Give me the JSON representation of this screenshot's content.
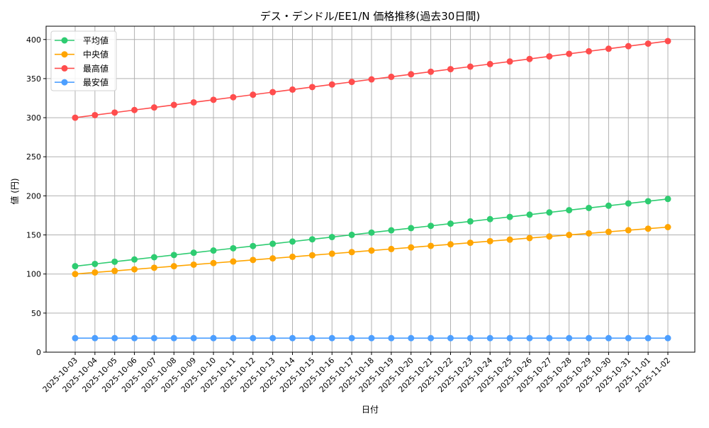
{
  "chart_data": {
    "type": "line",
    "title": "デス・デンドル/EE1/N 価格推移(過去30日間)",
    "xlabel": "日付",
    "ylabel": "値 (円)",
    "ylim": [
      0,
      417
    ],
    "yticks": [
      0,
      50,
      100,
      150,
      200,
      250,
      300,
      350,
      400
    ],
    "grid": true,
    "legend_position": "top-left",
    "categories": [
      "2025-10-03",
      "2025-10-04",
      "2025-10-05",
      "2025-10-06",
      "2025-10-07",
      "2025-10-08",
      "2025-10-09",
      "2025-10-10",
      "2025-10-11",
      "2025-10-12",
      "2025-10-13",
      "2025-10-14",
      "2025-10-15",
      "2025-10-16",
      "2025-10-17",
      "2025-10-18",
      "2025-10-19",
      "2025-10-20",
      "2025-10-21",
      "2025-10-22",
      "2025-10-23",
      "2025-10-24",
      "2025-10-25",
      "2025-10-26",
      "2025-10-27",
      "2025-10-28",
      "2025-10-29",
      "2025-10-30",
      "2025-10-31",
      "2025-11-01",
      "2025-11-02"
    ],
    "series": [
      {
        "name": "平均値",
        "color": "#2ecc71",
        "values": [
          110,
          112.87,
          115.73,
          118.6,
          121.47,
          124.33,
          127.2,
          130.07,
          132.93,
          135.8,
          138.67,
          141.53,
          144.4,
          147.27,
          150.13,
          153,
          155.87,
          158.73,
          161.6,
          164.47,
          167.33,
          170.2,
          173.07,
          175.93,
          178.8,
          181.67,
          184.53,
          187.4,
          190.27,
          193.13,
          196
        ]
      },
      {
        "name": "中央値",
        "color": "#ffa500",
        "values": [
          100,
          102,
          104,
          106,
          108,
          110,
          112,
          114,
          116,
          118,
          120,
          122,
          124,
          126,
          128,
          130,
          132,
          134,
          136,
          138,
          140,
          142,
          144,
          146,
          148,
          150,
          152,
          154,
          156,
          158,
          160
        ]
      },
      {
        "name": "最高値",
        "color": "#ff4d4d",
        "values": [
          300,
          303.27,
          306.53,
          309.8,
          313.07,
          316.33,
          319.6,
          322.87,
          326.13,
          329.4,
          332.67,
          335.93,
          339.2,
          342.47,
          345.73,
          349,
          352.27,
          355.53,
          358.8,
          362.07,
          365.33,
          368.6,
          371.87,
          375.13,
          378.4,
          381.67,
          384.93,
          388.2,
          391.47,
          394.73,
          398
        ]
      },
      {
        "name": "最安値",
        "color": "#4d9fff",
        "values": [
          18,
          18,
          18,
          18,
          18,
          18,
          18,
          18,
          18,
          18,
          18,
          18,
          18,
          18,
          18,
          18,
          18,
          18,
          18,
          18,
          18,
          18,
          18,
          18,
          18,
          18,
          18,
          18,
          18,
          18,
          18
        ]
      }
    ]
  }
}
